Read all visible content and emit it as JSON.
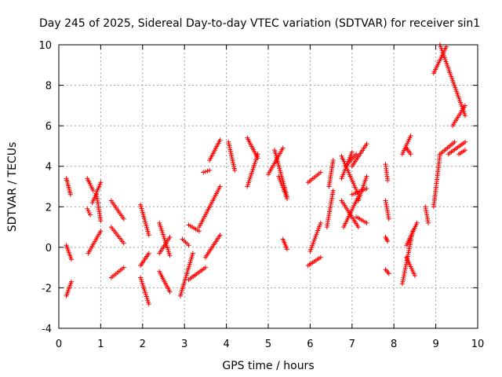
{
  "chart_data": {
    "type": "scatter",
    "title": "Day 245 of 2025, Sidereal Day-to-day VTEC variation (SDTVAR) for receiver sin1",
    "xlabel": "GPS time / hours",
    "ylabel": "SDTVAR / TECUs",
    "xlim": [
      0,
      10
    ],
    "ylim": [
      -4,
      10
    ],
    "xticks": [
      0,
      1,
      2,
      3,
      4,
      5,
      6,
      7,
      8,
      9,
      10
    ],
    "yticks": [
      -4,
      -2,
      0,
      2,
      4,
      6,
      8,
      10
    ],
    "grid": true,
    "legend": "none",
    "marker": "+",
    "color": "#ff0000",
    "segments": [
      {
        "x0": 0.18,
        "x1": 0.28,
        "y0": 3.4,
        "y1": 2.6
      },
      {
        "x0": 0.18,
        "x1": 0.3,
        "y0": 0.1,
        "y1": -0.6
      },
      {
        "x0": 0.18,
        "x1": 0.3,
        "y0": -2.4,
        "y1": -1.7
      },
      {
        "x0": 0.68,
        "x1": 0.82,
        "y0": 3.4,
        "y1": 2.8
      },
      {
        "x0": 0.68,
        "x1": 0.75,
        "y0": 1.9,
        "y1": 1.6
      },
      {
        "x0": 0.7,
        "x1": 1.0,
        "y0": -0.3,
        "y1": 0.8
      },
      {
        "x0": 0.8,
        "x1": 1.0,
        "y0": 2.2,
        "y1": 3.2
      },
      {
        "x0": 0.9,
        "x1": 1.0,
        "y0": 2.6,
        "y1": 1.3
      },
      {
        "x0": 1.25,
        "x1": 1.55,
        "y0": 2.3,
        "y1": 1.4
      },
      {
        "x0": 1.25,
        "x1": 1.55,
        "y0": 1.0,
        "y1": 0.2
      },
      {
        "x0": 1.25,
        "x1": 1.55,
        "y0": -1.5,
        "y1": -1.0
      },
      {
        "x0": 1.95,
        "x1": 2.15,
        "y0": 2.1,
        "y1": 0.6
      },
      {
        "x0": 1.95,
        "x1": 2.15,
        "y0": -0.9,
        "y1": -0.3
      },
      {
        "x0": 1.95,
        "x1": 2.15,
        "y0": -1.5,
        "y1": -2.8
      },
      {
        "x0": 2.4,
        "x1": 2.65,
        "y0": 1.2,
        "y1": -0.4
      },
      {
        "x0": 2.4,
        "x1": 2.65,
        "y0": -1.2,
        "y1": -2.2
      },
      {
        "x0": 2.4,
        "x1": 2.65,
        "y0": -0.3,
        "y1": 0.5
      },
      {
        "x0": 2.9,
        "x1": 3.2,
        "y0": -2.4,
        "y1": -0.3
      },
      {
        "x0": 2.95,
        "x1": 3.1,
        "y0": 0.4,
        "y1": 0.1
      },
      {
        "x0": 3.1,
        "x1": 3.35,
        "y0": 1.1,
        "y1": 0.8
      },
      {
        "x0": 3.1,
        "x1": 3.5,
        "y0": -1.6,
        "y1": -1.0
      },
      {
        "x0": 3.35,
        "x1": 3.85,
        "y0": 1.0,
        "y1": 3.0
      },
      {
        "x0": 3.45,
        "x1": 3.6,
        "y0": 3.7,
        "y1": 3.8
      },
      {
        "x0": 3.5,
        "x1": 3.85,
        "y0": -0.5,
        "y1": 0.6
      },
      {
        "x0": 3.6,
        "x1": 3.85,
        "y0": 4.3,
        "y1": 5.3
      },
      {
        "x0": 4.05,
        "x1": 4.2,
        "y0": 5.2,
        "y1": 3.8
      },
      {
        "x0": 4.5,
        "x1": 4.75,
        "y0": 3.0,
        "y1": 4.6
      },
      {
        "x0": 4.5,
        "x1": 4.75,
        "y0": 5.4,
        "y1": 4.4
      },
      {
        "x0": 5.0,
        "x1": 5.35,
        "y0": 3.6,
        "y1": 4.9
      },
      {
        "x0": 5.15,
        "x1": 5.45,
        "y0": 4.8,
        "y1": 2.5
      },
      {
        "x0": 5.25,
        "x1": 5.45,
        "y0": 3.5,
        "y1": 2.4
      },
      {
        "x0": 5.35,
        "x1": 5.45,
        "y0": 0.4,
        "y1": -0.1
      },
      {
        "x0": 5.95,
        "x1": 6.25,
        "y0": 3.2,
        "y1": 3.7
      },
      {
        "x0": 5.95,
        "x1": 6.25,
        "y0": -0.9,
        "y1": -0.5
      },
      {
        "x0": 6.0,
        "x1": 6.25,
        "y0": -0.2,
        "y1": 1.2
      },
      {
        "x0": 6.4,
        "x1": 6.55,
        "y0": 1.0,
        "y1": 2.8
      },
      {
        "x0": 6.45,
        "x1": 6.55,
        "y0": 3.0,
        "y1": 4.3
      },
      {
        "x0": 6.75,
        "x1": 7.15,
        "y0": 4.5,
        "y1": 2.6
      },
      {
        "x0": 6.75,
        "x1": 7.15,
        "y0": 2.3,
        "y1": 1.0
      },
      {
        "x0": 6.75,
        "x1": 7.0,
        "y0": 3.4,
        "y1": 4.7
      },
      {
        "x0": 6.8,
        "x1": 7.15,
        "y0": 1.0,
        "y1": 2.5
      },
      {
        "x0": 6.85,
        "x1": 7.1,
        "y0": 4.0,
        "y1": 4.6
      },
      {
        "x0": 7.0,
        "x1": 7.35,
        "y0": 2.6,
        "y1": 2.9
      },
      {
        "x0": 7.0,
        "x1": 7.35,
        "y0": 4.0,
        "y1": 5.1
      },
      {
        "x0": 7.1,
        "x1": 7.35,
        "y0": 1.5,
        "y1": 1.2
      },
      {
        "x0": 7.15,
        "x1": 7.35,
        "y0": 2.3,
        "y1": 3.5
      },
      {
        "x0": 7.8,
        "x1": 7.85,
        "y0": 4.1,
        "y1": 3.3
      },
      {
        "x0": 7.8,
        "x1": 7.88,
        "y0": 2.3,
        "y1": 1.4
      },
      {
        "x0": 7.8,
        "x1": 7.85,
        "y0": 0.5,
        "y1": 0.3
      },
      {
        "x0": 7.8,
        "x1": 7.88,
        "y0": -1.1,
        "y1": -1.3
      },
      {
        "x0": 8.2,
        "x1": 8.4,
        "y0": 4.6,
        "y1": 5.5
      },
      {
        "x0": 8.3,
        "x1": 8.4,
        "y0": 4.9,
        "y1": 4.6
      },
      {
        "x0": 8.2,
        "x1": 8.45,
        "y0": -1.8,
        "y1": 0.8
      },
      {
        "x0": 8.3,
        "x1": 8.55,
        "y0": 0.1,
        "y1": 1.2
      },
      {
        "x0": 8.3,
        "x1": 8.5,
        "y0": -0.5,
        "y1": -1.4
      },
      {
        "x0": 8.75,
        "x1": 8.82,
        "y0": 2.0,
        "y1": 1.2
      },
      {
        "x0": 8.95,
        "x1": 9.1,
        "y0": 2.0,
        "y1": 4.6
      },
      {
        "x0": 8.95,
        "x1": 9.25,
        "y0": 8.6,
        "y1": 9.9
      },
      {
        "x0": 9.1,
        "x1": 9.7,
        "y0": 10.0,
        "y1": 6.5
      },
      {
        "x0": 9.4,
        "x1": 9.7,
        "y0": 6.0,
        "y1": 7.0
      },
      {
        "x0": 9.1,
        "x1": 9.45,
        "y0": 4.6,
        "y1": 5.2
      },
      {
        "x0": 9.3,
        "x1": 9.7,
        "y0": 4.6,
        "y1": 5.2
      },
      {
        "x0": 9.55,
        "x1": 9.7,
        "y0": 4.6,
        "y1": 4.8
      }
    ]
  }
}
